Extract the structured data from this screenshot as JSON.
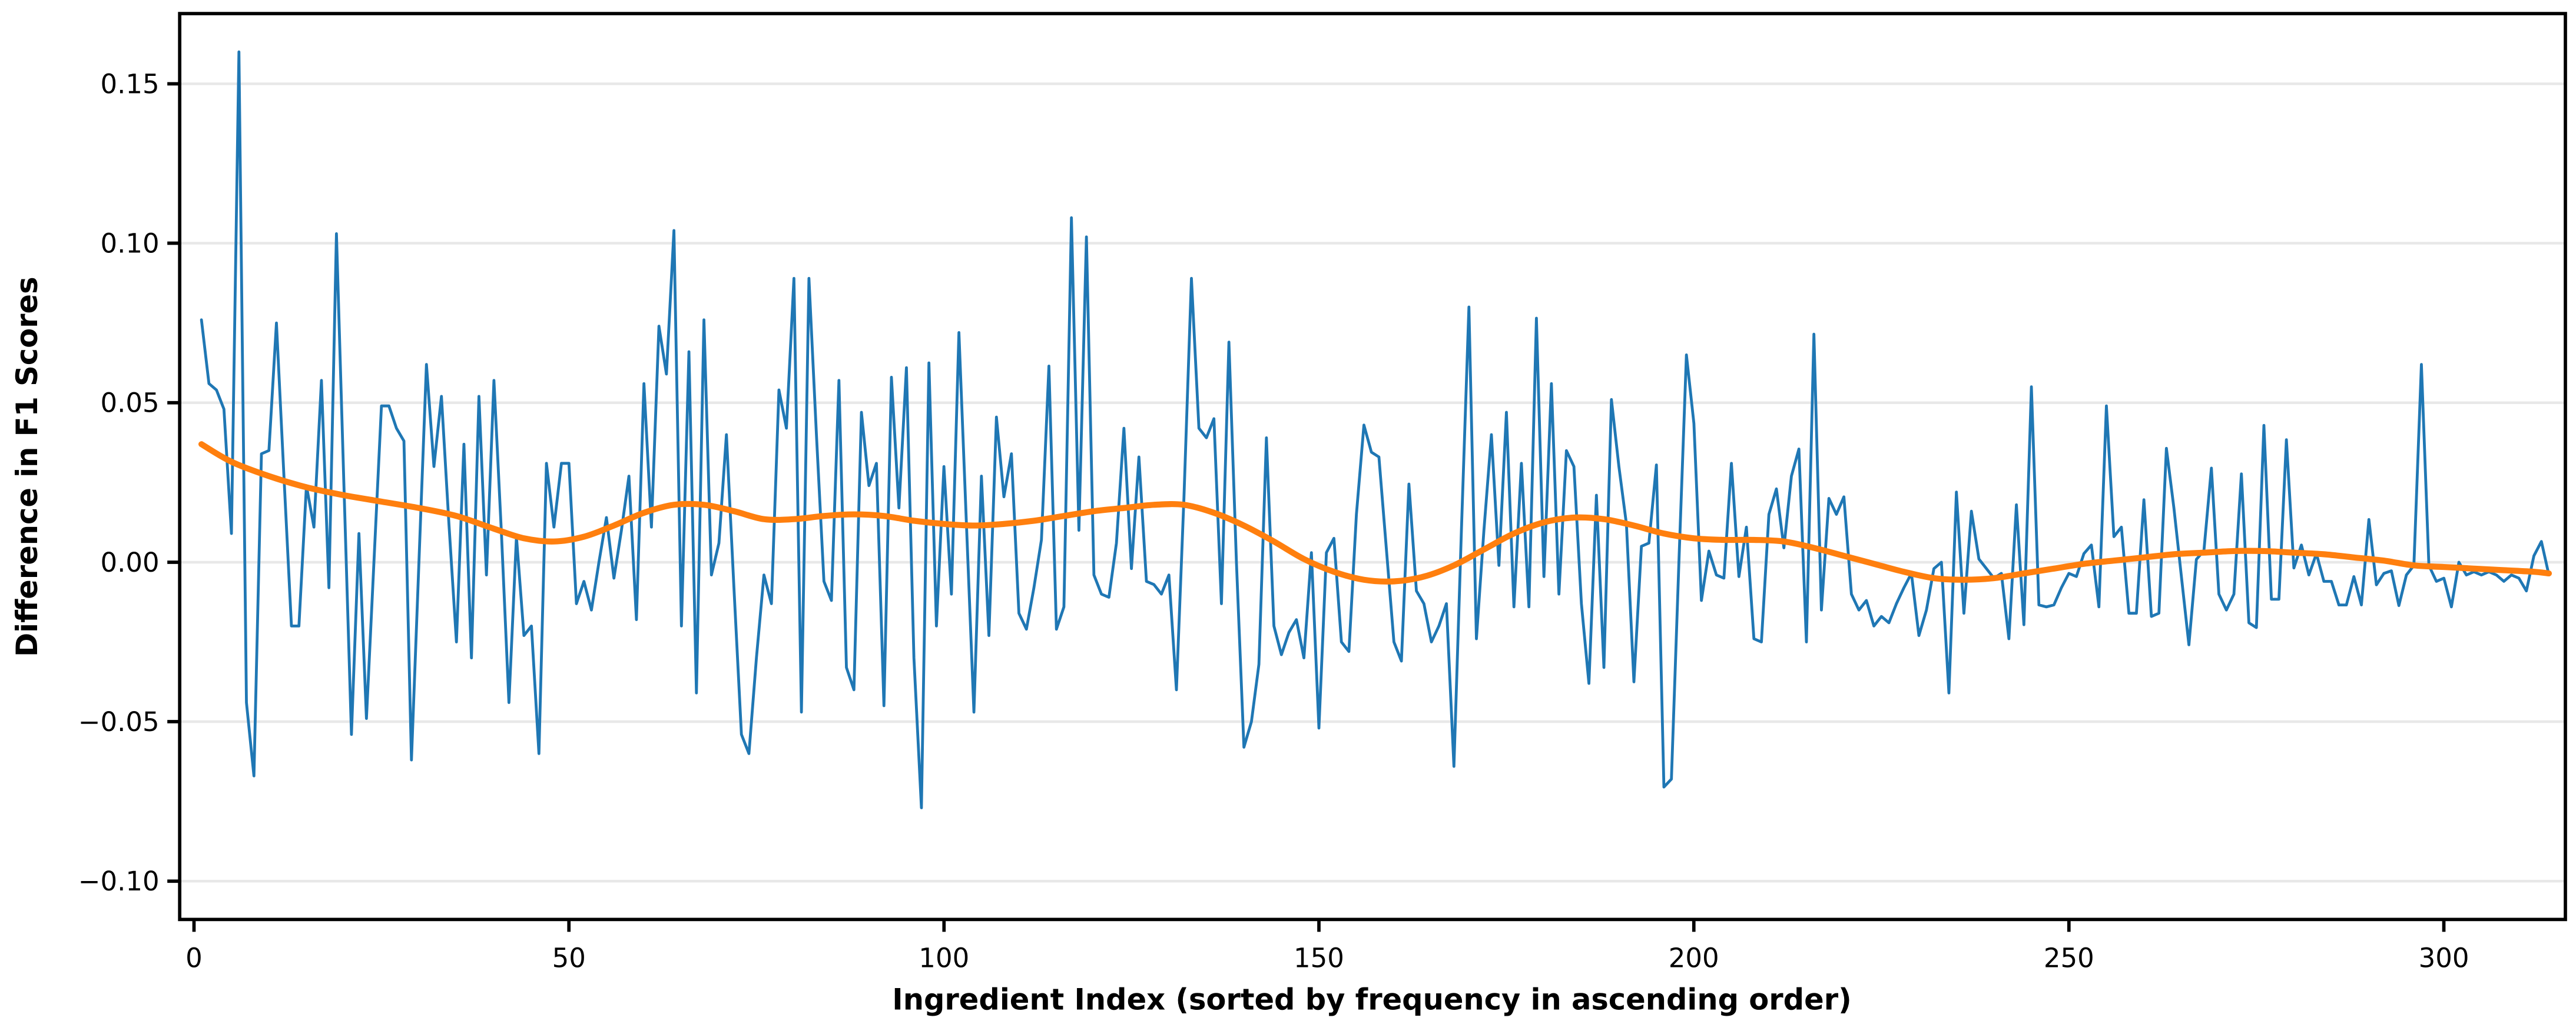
{
  "figure": {
    "background_color": "#ffffff",
    "grid_color": "#e8e8e8",
    "spine_color": "#000000",
    "tick_color": "#000000"
  },
  "chart_data": {
    "type": "line",
    "title": "",
    "xlabel": "Ingredient Index (sorted by frequency in ascending order)",
    "ylabel": "Difference in F1 Scores",
    "grid": "horizontal-only",
    "legend": "none",
    "xlim": [
      -1.9,
      316.2
    ],
    "ylim": [
      -0.112,
      0.172
    ],
    "x_ticks": [
      0,
      50,
      100,
      150,
      200,
      250,
      300
    ],
    "x_tick_labels": [
      "0",
      "50",
      "100",
      "150",
      "200",
      "250",
      "300"
    ],
    "y_ticks": [
      0.15,
      0.1,
      0.05,
      0.0,
      -0.05,
      -0.1
    ],
    "y_tick_labels": [
      "0.15",
      "0.10",
      "0.05",
      "0.00",
      "−0.05",
      "−0.10"
    ],
    "series": [
      {
        "name": "raw-f1-differences",
        "color": "#1f77b4",
        "stroke_width": 1.6,
        "style": "jagged",
        "x_start": 1,
        "x_step": 1,
        "values": [
          0.076,
          0.056,
          0.054,
          0.048,
          0.009,
          0.16,
          -0.044,
          -0.067,
          0.034,
          0.035,
          0.075,
          0.027,
          -0.02,
          -0.02,
          0.024,
          0.011,
          0.057,
          -0.008,
          0.103,
          0.024,
          -0.054,
          0.009,
          -0.049,
          0.0,
          0.049,
          0.049,
          0.042,
          0.038,
          -0.062,
          0.0,
          0.062,
          0.03,
          0.052,
          0.012,
          -0.025,
          0.037,
          -0.03,
          0.052,
          -0.004,
          0.057,
          0.009,
          -0.044,
          0.008,
          -0.023,
          -0.02,
          -0.06,
          0.031,
          0.011,
          0.031,
          0.031,
          -0.013,
          -0.006,
          -0.015,
          0.0,
          0.014,
          -0.005,
          0.01,
          0.027,
          -0.018,
          0.056,
          0.011,
          0.074,
          0.059,
          0.104,
          -0.02,
          0.066,
          -0.041,
          0.076,
          -0.004,
          0.006,
          0.04,
          -0.008,
          -0.054,
          -0.06,
          -0.03,
          -0.004,
          -0.013,
          0.054,
          0.042,
          0.089,
          -0.047,
          0.089,
          0.04,
          -0.006,
          -0.012,
          0.057,
          -0.033,
          -0.04,
          0.047,
          0.024,
          0.031,
          -0.045,
          0.058,
          0.017,
          0.061,
          -0.03,
          -0.077,
          0.0625,
          -0.02,
          0.03,
          -0.01,
          0.072,
          0.012,
          -0.047,
          0.027,
          -0.023,
          0.0455,
          0.0205,
          0.034,
          -0.016,
          -0.021,
          -0.008,
          0.007,
          0.0615,
          -0.021,
          -0.014,
          0.108,
          0.01,
          0.102,
          -0.004,
          -0.01,
          -0.011,
          0.006,
          0.042,
          -0.002,
          0.033,
          -0.006,
          -0.007,
          -0.01,
          -0.004,
          -0.04,
          0.02,
          0.089,
          0.042,
          0.039,
          0.045,
          -0.013,
          0.069,
          0.0,
          -0.058,
          -0.05,
          -0.032,
          0.039,
          -0.02,
          -0.029,
          -0.022,
          -0.018,
          -0.03,
          0.003,
          -0.052,
          0.003,
          0.0075,
          -0.025,
          -0.028,
          0.015,
          0.043,
          0.0345,
          0.033,
          0.004,
          -0.025,
          -0.031,
          0.0245,
          -0.009,
          -0.013,
          -0.025,
          -0.02,
          -0.013,
          -0.064,
          0.01,
          0.08,
          -0.024,
          0.01,
          0.04,
          -0.001,
          0.047,
          -0.014,
          0.031,
          -0.014,
          0.0765,
          -0.0045,
          0.056,
          -0.01,
          0.035,
          0.03,
          -0.013,
          -0.038,
          0.021,
          -0.033,
          0.051,
          0.03,
          0.012,
          -0.0375,
          0.005,
          0.006,
          0.0305,
          -0.0705,
          -0.068,
          0.0,
          0.065,
          0.0435,
          -0.012,
          0.0035,
          -0.004,
          -0.005,
          0.031,
          -0.0045,
          0.011,
          -0.024,
          -0.025,
          0.015,
          0.023,
          0.0045,
          0.027,
          0.0355,
          -0.025,
          0.0715,
          -0.015,
          0.02,
          0.015,
          0.0205,
          -0.01,
          -0.015,
          -0.012,
          -0.02,
          -0.017,
          -0.019,
          -0.013,
          -0.008,
          -0.0035,
          -0.023,
          -0.015,
          -0.002,
          0.0,
          -0.041,
          0.022,
          -0.016,
          0.016,
          0.001,
          -0.002,
          -0.005,
          -0.0035,
          -0.024,
          0.018,
          -0.0196,
          0.055,
          -0.0134,
          -0.014,
          -0.0134,
          -0.008,
          -0.0035,
          -0.0045,
          0.0027,
          0.0054,
          -0.014,
          0.049,
          0.008,
          0.011,
          -0.016,
          -0.016,
          0.0196,
          -0.017,
          -0.016,
          0.0357,
          0.017,
          -0.0045,
          -0.0259,
          0.0009,
          0.0036,
          0.0295,
          -0.01,
          -0.015,
          -0.01,
          0.0277,
          -0.019,
          -0.0205,
          0.0429,
          -0.0116,
          -0.0116,
          0.0384,
          -0.0018,
          0.0054,
          -0.004,
          0.0027,
          -0.006,
          -0.006,
          -0.0134,
          -0.0134,
          -0.0045,
          -0.0134,
          0.0134,
          -0.0071,
          -0.0035,
          -0.0027,
          -0.0136,
          -0.004,
          -0.001,
          0.062,
          -0.001,
          -0.006,
          -0.005,
          -0.014,
          0.0,
          -0.004,
          -0.003,
          -0.004,
          -0.003,
          -0.004,
          -0.006,
          -0.004,
          -0.005,
          -0.009,
          0.002,
          0.0065,
          -0.004
        ]
      },
      {
        "name": "smoothed-trend",
        "color": "#ff7f0e",
        "stroke_width": 3.4,
        "style": "smooth",
        "points": [
          [
            1,
            0.037
          ],
          [
            5,
            0.0315
          ],
          [
            10,
            0.027
          ],
          [
            15,
            0.0235
          ],
          [
            20,
            0.021
          ],
          [
            25,
            0.019
          ],
          [
            30,
            0.017
          ],
          [
            35,
            0.0145
          ],
          [
            40,
            0.0105
          ],
          [
            44,
            0.0075
          ],
          [
            48,
            0.0065
          ],
          [
            52,
            0.008
          ],
          [
            56,
            0.0115
          ],
          [
            60,
            0.0155
          ],
          [
            64,
            0.018
          ],
          [
            68,
            0.018
          ],
          [
            72,
            0.016
          ],
          [
            76,
            0.0135
          ],
          [
            80,
            0.0135
          ],
          [
            84,
            0.0145
          ],
          [
            88,
            0.015
          ],
          [
            92,
            0.0145
          ],
          [
            96,
            0.013
          ],
          [
            100,
            0.012
          ],
          [
            104,
            0.0115
          ],
          [
            108,
            0.012
          ],
          [
            112,
            0.013
          ],
          [
            116,
            0.0145
          ],
          [
            120,
            0.016
          ],
          [
            124,
            0.017
          ],
          [
            128,
            0.018
          ],
          [
            132,
            0.018
          ],
          [
            136,
            0.0155
          ],
          [
            140,
            0.0115
          ],
          [
            144,
            0.0065
          ],
          [
            148,
            0.001
          ],
          [
            152,
            -0.003
          ],
          [
            156,
            -0.0055
          ],
          [
            160,
            -0.006
          ],
          [
            164,
            -0.0045
          ],
          [
            168,
            -0.001
          ],
          [
            172,
            0.004
          ],
          [
            176,
            0.009
          ],
          [
            180,
            0.0125
          ],
          [
            184,
            0.014
          ],
          [
            188,
            0.0135
          ],
          [
            192,
            0.0115
          ],
          [
            196,
            0.009
          ],
          [
            200,
            0.0075
          ],
          [
            204,
            0.007
          ],
          [
            208,
            0.007
          ],
          [
            212,
            0.0065
          ],
          [
            216,
            0.0045
          ],
          [
            220,
            0.002
          ],
          [
            224,
            -0.0005
          ],
          [
            228,
            -0.003
          ],
          [
            232,
            -0.005
          ],
          [
            236,
            -0.0055
          ],
          [
            240,
            -0.005
          ],
          [
            244,
            -0.0035
          ],
          [
            248,
            -0.002
          ],
          [
            252,
            -0.0005
          ],
          [
            256,
            0.0005
          ],
          [
            260,
            0.0015
          ],
          [
            264,
            0.0025
          ],
          [
            268,
            0.003
          ],
          [
            272,
            0.0035
          ],
          [
            276,
            0.0035
          ],
          [
            280,
            0.003
          ],
          [
            284,
            0.0025
          ],
          [
            288,
            0.0015
          ],
          [
            292,
            0.0005
          ],
          [
            296,
            -0.001
          ],
          [
            300,
            -0.0015
          ],
          [
            304,
            -0.002
          ],
          [
            308,
            -0.0025
          ],
          [
            312,
            -0.003
          ],
          [
            314,
            -0.0035
          ]
        ]
      }
    ]
  }
}
